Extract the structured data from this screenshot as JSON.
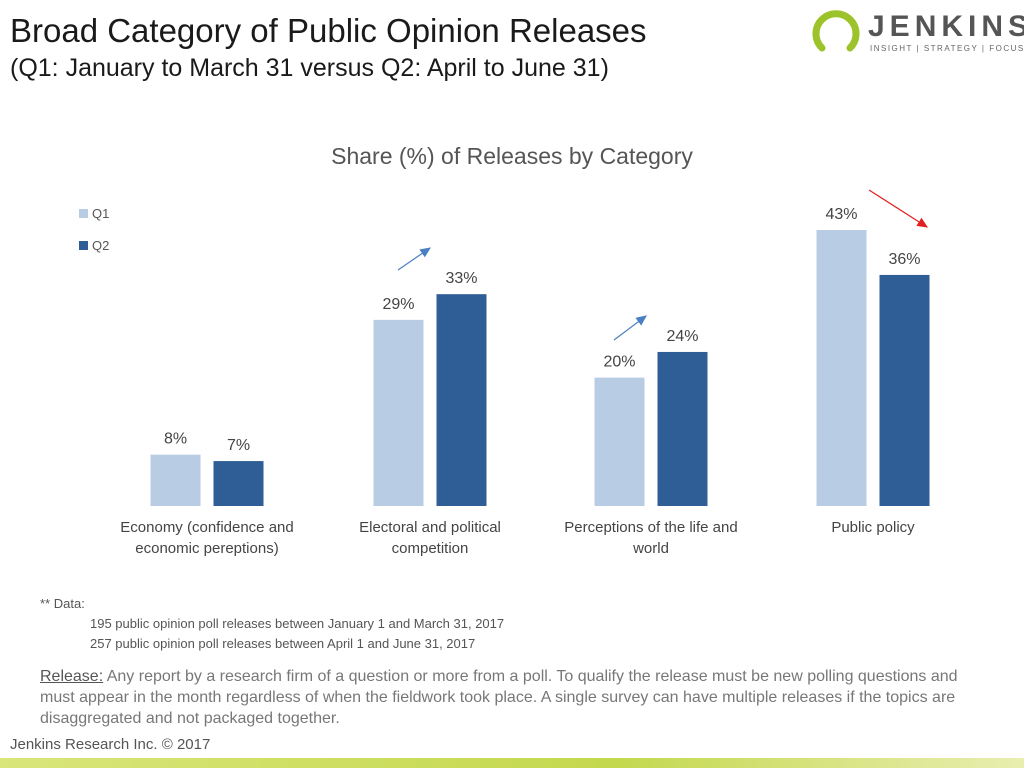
{
  "header": {
    "title": "Broad Category of Public Opinion Releases",
    "subtitle": "(Q1: January to March 31 versus Q2: April to June 31)"
  },
  "logo": {
    "name": "JENKINS",
    "tagline": "INSIGHT | STRATEGY | FOCUS"
  },
  "chart_data": {
    "type": "bar",
    "title": "Share (%) of Releases by Category",
    "categories": [
      [
        "Economy (confidence and",
        "economic pereptions)"
      ],
      [
        "Electoral and political",
        "competition"
      ],
      [
        "Perceptions of the life and",
        "world"
      ],
      [
        "Public policy"
      ]
    ],
    "series": [
      {
        "name": "Q1",
        "values": [
          8,
          29,
          20,
          43
        ],
        "labels": [
          "8%",
          "29%",
          "20%",
          "43%"
        ],
        "color": "#b8cce4"
      },
      {
        "name": "Q2",
        "values": [
          7,
          33,
          24,
          36
        ],
        "labels": [
          "7%",
          "33%",
          "24%",
          "36%"
        ],
        "color": "#2f5d95"
      }
    ],
    "ylim": [
      0,
      43
    ],
    "grid": false,
    "legend": "top-left",
    "trend_arrows": [
      {
        "category": 1,
        "direction": "up",
        "color": "#4a7fc1"
      },
      {
        "category": 2,
        "direction": "up",
        "color": "#4a7fc1"
      },
      {
        "category": 3,
        "direction": "down",
        "color": "#e02020"
      }
    ]
  },
  "notes": {
    "heading": "** Data:",
    "lines": [
      "195 public opinion poll releases between January 1 and March 31, 2017",
      "257 public opinion poll releases between April 1 and June 31, 2017"
    ]
  },
  "release": {
    "term": "Release:",
    "text": " Any report by a research firm of a question or more from a poll. To qualify the release must be new polling questions and must appear in the month regardless of when the fieldwork took place. A single survey can have multiple releases if the topics are disaggregated and not packaged together."
  },
  "footer": "Jenkins Research Inc. © 2017"
}
